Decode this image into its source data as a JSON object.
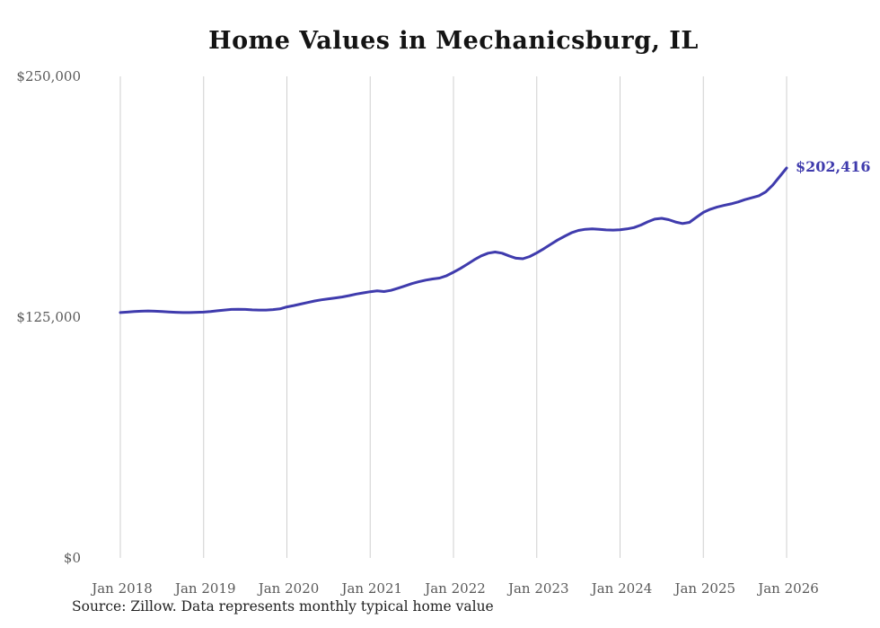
{
  "title": "Home Values in Mechanicsburg, IL",
  "end_label": "$202,416",
  "source_note": "Source: Zillow. Data represents monthly typical home value",
  "colors": {
    "line": "#3f3bad",
    "end_label": "#3f3bad",
    "grid": "#cfcfcf",
    "axis_text": "#595959",
    "title_text": "#141414"
  },
  "chart_data": {
    "type": "line",
    "title": "Home Values in Mechanicsburg, IL",
    "xlabel": "",
    "ylabel": "",
    "ylim": [
      0,
      250000
    ],
    "grid": "vertical-only",
    "legend": "none",
    "x_tick_labels": [
      "Jan 2018",
      "Jan 2019",
      "Jan 2020",
      "Jan 2021",
      "Jan 2022",
      "Jan 2023",
      "Jan 2024",
      "Jan 2025",
      "Jan 2026"
    ],
    "y_ticks": [
      {
        "value": 0,
        "label": "$0"
      },
      {
        "value": 125000,
        "label": "$125,000"
      },
      {
        "value": 250000,
        "label": "$250,000"
      }
    ],
    "x_range": "monthly from Jan 2018 to Jan 2026",
    "final_value": 202416,
    "final_value_label": "$202,416",
    "series": [
      {
        "name": "Typical home value",
        "monthly_values": [
          127400,
          127600,
          127900,
          128100,
          128200,
          128100,
          127900,
          127700,
          127500,
          127400,
          127400,
          127500,
          127600,
          127900,
          128300,
          128700,
          129000,
          129100,
          129000,
          128800,
          128700,
          128700,
          128900,
          129300,
          130300,
          131000,
          131800,
          132600,
          133400,
          134000,
          134500,
          135000,
          135500,
          136200,
          137000,
          137600,
          138200,
          138600,
          138300,
          138900,
          140000,
          141200,
          142400,
          143400,
          144200,
          144800,
          145300,
          146500,
          148300,
          150300,
          152500,
          154800,
          156800,
          158200,
          158800,
          158200,
          156800,
          155600,
          155300,
          156500,
          158400,
          160500,
          162800,
          165000,
          167000,
          168800,
          170000,
          170600,
          170800,
          170600,
          170300,
          170200,
          170400,
          170800,
          171500,
          172800,
          174500,
          175900,
          176300,
          175600,
          174400,
          173600,
          174200,
          176800,
          179400,
          181000,
          182200,
          183000,
          183800,
          184800,
          186000,
          187000,
          188000,
          190000,
          193500,
          198000,
          202416
        ]
      }
    ]
  }
}
